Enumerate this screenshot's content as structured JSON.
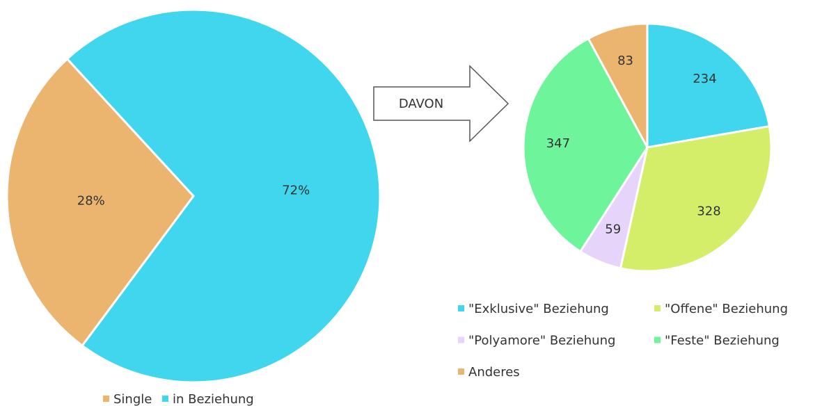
{
  "annotation": "DAVON",
  "chart_data": [
    {
      "type": "pie",
      "categories": [
        "Single",
        "in Beziehung"
      ],
      "values": [
        28,
        72
      ],
      "value_labels": [
        "28%",
        "72%"
      ],
      "colors": [
        "#ebb56f",
        "#40d6ee"
      ],
      "legend": "bottom"
    },
    {
      "type": "pie",
      "categories": [
        "\"Exklusive\" Beziehung",
        "\"Offene\" Beziehung",
        "\"Polyamore\" Beziehung",
        "\"Feste\" Beziehung",
        "Anderes"
      ],
      "values": [
        234,
        328,
        59,
        347,
        83
      ],
      "colors": [
        "#40d6ee",
        "#d4ee6a",
        "#e6d4fa",
        "#6ef49a",
        "#ebb56f"
      ],
      "legend": "bottom"
    }
  ]
}
